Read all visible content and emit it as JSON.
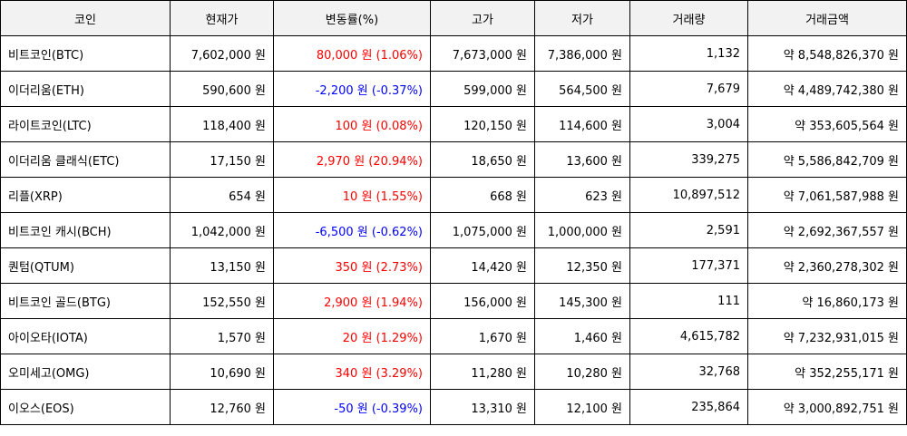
{
  "headers": [
    "코인",
    "현재가",
    "변동률(%)",
    "고가",
    "저가",
    "거래량",
    "거래금액"
  ],
  "colors": {
    "up": "#ff0000",
    "down": "#0000ff",
    "header_bg": "#f2f2f2"
  },
  "rows": [
    {
      "coin": "비트코인(BTC)",
      "price": "7,602,000 원",
      "change": "80,000 원 (1.06%)",
      "direction": "up",
      "high": "7,673,000 원",
      "low": "7,386,000 원",
      "volume": "1,132",
      "amount": "약 8,548,826,370 원"
    },
    {
      "coin": "이더리움(ETH)",
      "price": "590,600 원",
      "change": "-2,200 원 (-0.37%)",
      "direction": "down",
      "high": "599,000 원",
      "low": "564,500 원",
      "volume": "7,679",
      "amount": "약 4,489,742,380 원"
    },
    {
      "coin": "라이트코인(LTC)",
      "price": "118,400 원",
      "change": "100 원 (0.08%)",
      "direction": "up",
      "high": "120,150 원",
      "low": "114,600 원",
      "volume": "3,004",
      "amount": "약 353,605,564 원"
    },
    {
      "coin": "이더리움 클래식(ETC)",
      "price": "17,150 원",
      "change": "2,970 원 (20.94%)",
      "direction": "up",
      "high": "18,650 원",
      "low": "13,600 원",
      "volume": "339,275",
      "amount": "약 5,586,842,709 원"
    },
    {
      "coin": "리플(XRP)",
      "price": "654 원",
      "change": "10 원 (1.55%)",
      "direction": "up",
      "high": "668 원",
      "low": "623 원",
      "volume": "10,897,512",
      "amount": "약 7,061,587,988 원"
    },
    {
      "coin": "비트코인 캐시(BCH)",
      "price": "1,042,000 원",
      "change": "-6,500 원 (-0.62%)",
      "direction": "down",
      "high": "1,075,000 원",
      "low": "1,000,000 원",
      "volume": "2,591",
      "amount": "약 2,692,367,557 원"
    },
    {
      "coin": "퀀텀(QTUM)",
      "price": "13,150 원",
      "change": "350 원 (2.73%)",
      "direction": "up",
      "high": "14,420 원",
      "low": "12,350 원",
      "volume": "177,371",
      "amount": "약 2,360,278,302 원"
    },
    {
      "coin": "비트코인 골드(BTG)",
      "price": "152,550 원",
      "change": "2,900 원 (1.94%)",
      "direction": "up",
      "high": "156,000 원",
      "low": "145,300 원",
      "volume": "111",
      "amount": "약 16,860,173 원"
    },
    {
      "coin": "아이오타(IOTA)",
      "price": "1,570 원",
      "change": "20 원 (1.29%)",
      "direction": "up",
      "high": "1,670 원",
      "low": "1,460 원",
      "volume": "4,615,782",
      "amount": "약 7,232,931,015 원"
    },
    {
      "coin": "오미세고(OMG)",
      "price": "10,690 원",
      "change": "340 원 (3.29%)",
      "direction": "up",
      "high": "11,280 원",
      "low": "10,280 원",
      "volume": "32,768",
      "amount": "약 352,255,171 원"
    },
    {
      "coin": "이오스(EOS)",
      "price": "12,760 원",
      "change": "-50 원 (-0.39%)",
      "direction": "down",
      "high": "13,310 원",
      "low": "12,100 원",
      "volume": "235,864",
      "amount": "약 3,000,892,751 원"
    }
  ]
}
